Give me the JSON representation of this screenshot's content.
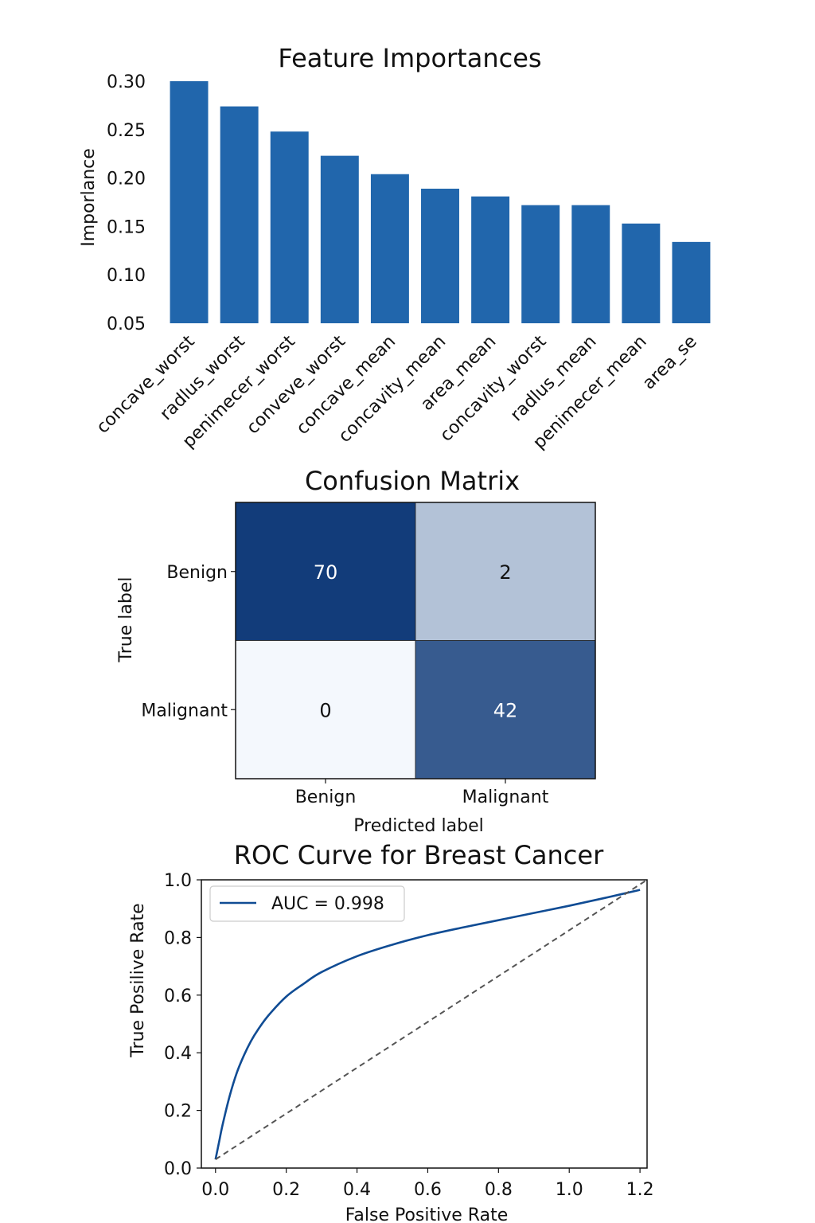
{
  "chart_data": [
    {
      "type": "bar",
      "title": "Feature Importances",
      "xlabel": "",
      "ylabel": "Imporlance",
      "categories": [
        "concave_worst",
        "radlus_worst",
        "penimecer_worst",
        "conveve_worst",
        "concave_mean",
        "concavity_mean",
        "area_mean",
        "concavity_worst",
        "radlus_mean",
        "penimecer_mean",
        "area_se"
      ],
      "values": [
        0.3,
        0.274,
        0.248,
        0.223,
        0.204,
        0.189,
        0.181,
        0.172,
        0.172,
        0.153,
        0.134
      ],
      "ylim": [
        0.05,
        0.3
      ],
      "yticks": [
        "0.05",
        "0.10",
        "0.15",
        "0.20",
        "0.25",
        "0.30"
      ],
      "color": "#2166ac",
      "grid": false
    },
    {
      "type": "heatmap",
      "title": "Confusion Matrix",
      "xlabel": "Predicted label",
      "ylabel": "True label",
      "x_categories": [
        "Benign",
        "Malignant"
      ],
      "y_categories": [
        "Benign",
        "Malignant"
      ],
      "values": [
        [
          70,
          2
        ],
        [
          0,
          42
        ]
      ],
      "colormap": "Blues",
      "dark_color": "#123c7a",
      "light_color": "#f4f8fd"
    },
    {
      "type": "line",
      "title": "ROC Curve for Breast Cancer",
      "xlabel": "False Positive Rate",
      "ylabel": "True Posilive Rate",
      "xlim": [
        -0.04,
        1.22
      ],
      "ylim": [
        0.0,
        1.0
      ],
      "xticks": [
        "0.0",
        "0.2",
        "0.4",
        "0.6",
        "0.8",
        "1.0",
        "1.2"
      ],
      "yticks": [
        "0.0",
        "0.2",
        "0.4",
        "0.6",
        "0.8",
        "1.0"
      ],
      "legend_position": "top-left",
      "series": [
        {
          "name": "AUC = 0.998",
          "color": "#104c94",
          "style": "solid",
          "x": [
            0.0,
            0.01,
            0.02,
            0.04,
            0.06,
            0.08,
            0.1,
            0.12,
            0.15,
            0.2,
            0.25,
            0.3,
            0.4,
            0.5,
            0.6,
            0.7,
            0.8,
            0.9,
            1.0,
            1.1,
            1.2
          ],
          "y": [
            0.03,
            0.09,
            0.15,
            0.25,
            0.33,
            0.39,
            0.44,
            0.48,
            0.53,
            0.595,
            0.64,
            0.68,
            0.735,
            0.775,
            0.808,
            0.835,
            0.86,
            0.885,
            0.91,
            0.937,
            0.965
          ]
        },
        {
          "name": "",
          "color": "#555555",
          "style": "dashed",
          "x": [
            0.0,
            1.22
          ],
          "y": [
            0.03,
            1.0
          ]
        }
      ]
    }
  ]
}
